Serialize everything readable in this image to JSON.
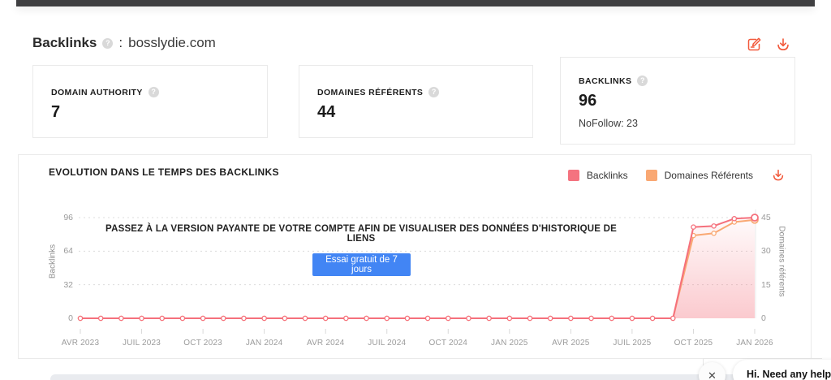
{
  "header": {
    "title": "Backlinks",
    "colon": ":",
    "domain": "bosslydie.com",
    "help_glyph": "?"
  },
  "stat_cards": [
    {
      "label": "DOMAIN AUTHORITY",
      "value": "7"
    },
    {
      "label": "DOMAINES RÉFÉRENTS",
      "value": "44"
    },
    {
      "label": "BACKLINKS",
      "value": "96",
      "sub": "NoFollow: 23"
    }
  ],
  "chart_panel": {
    "title": "EVOLUTION DANS LE TEMPS DES BACKLINKS",
    "legend": [
      {
        "label": "Backlinks",
        "color": "#f4737f"
      },
      {
        "label": "Domaines Référents",
        "color": "#f9a873"
      }
    ],
    "upgrade_message": "PASSEZ À LA VERSION PAYANTE DE VOTRE COMPTE AFIN DE VISUALISER DES DONNÉES D'HISTORIQUE DE LIENS",
    "cta_label": "Essai gratuit de 7 jours"
  },
  "chart_data": {
    "type": "line",
    "title": "EVOLUTION DANS LE TEMPS DES BACKLINKS",
    "x_tick_labels": [
      "AVR 2023",
      "JUIL 2023",
      "OCT 2023",
      "JAN 2024",
      "AVR 2024",
      "JUIL 2024",
      "OCT 2024",
      "JAN 2025",
      "AVR 2025",
      "JUIL 2025",
      "OCT 2025",
      "JAN 2026"
    ],
    "points_per_label": 3,
    "series": [
      {
        "name": "Backlinks",
        "axis": "left",
        "color": "#f5707c",
        "values": [
          0,
          0,
          0,
          0,
          0,
          0,
          0,
          0,
          0,
          0,
          0,
          0,
          0,
          0,
          0,
          0,
          0,
          0,
          0,
          0,
          0,
          0,
          0,
          0,
          0,
          0,
          0,
          0,
          0,
          0,
          87,
          88,
          95,
          96
        ]
      },
      {
        "name": "Domaines Référents",
        "axis": "right",
        "color": "#f9a873",
        "values": [
          0,
          0,
          0,
          0,
          0,
          0,
          0,
          0,
          0,
          0,
          0,
          0,
          0,
          0,
          0,
          0,
          0,
          0,
          0,
          0,
          0,
          0,
          0,
          0,
          0,
          0,
          0,
          0,
          0,
          0,
          37,
          38,
          43,
          44
        ]
      }
    ],
    "left_axis": {
      "label": "Backlinks",
      "ticks": [
        0,
        32,
        64,
        96
      ],
      "max": 96
    },
    "right_axis": {
      "label": "Domaines référents",
      "ticks": [
        0,
        15,
        30,
        45
      ],
      "max": 45
    },
    "grid": "horizontal-dashed",
    "legend_position": "top-right",
    "area_fill_under": "Backlinks"
  },
  "chat_widget": {
    "message": "Hi. Need any help?",
    "close_glyph": "✕"
  }
}
